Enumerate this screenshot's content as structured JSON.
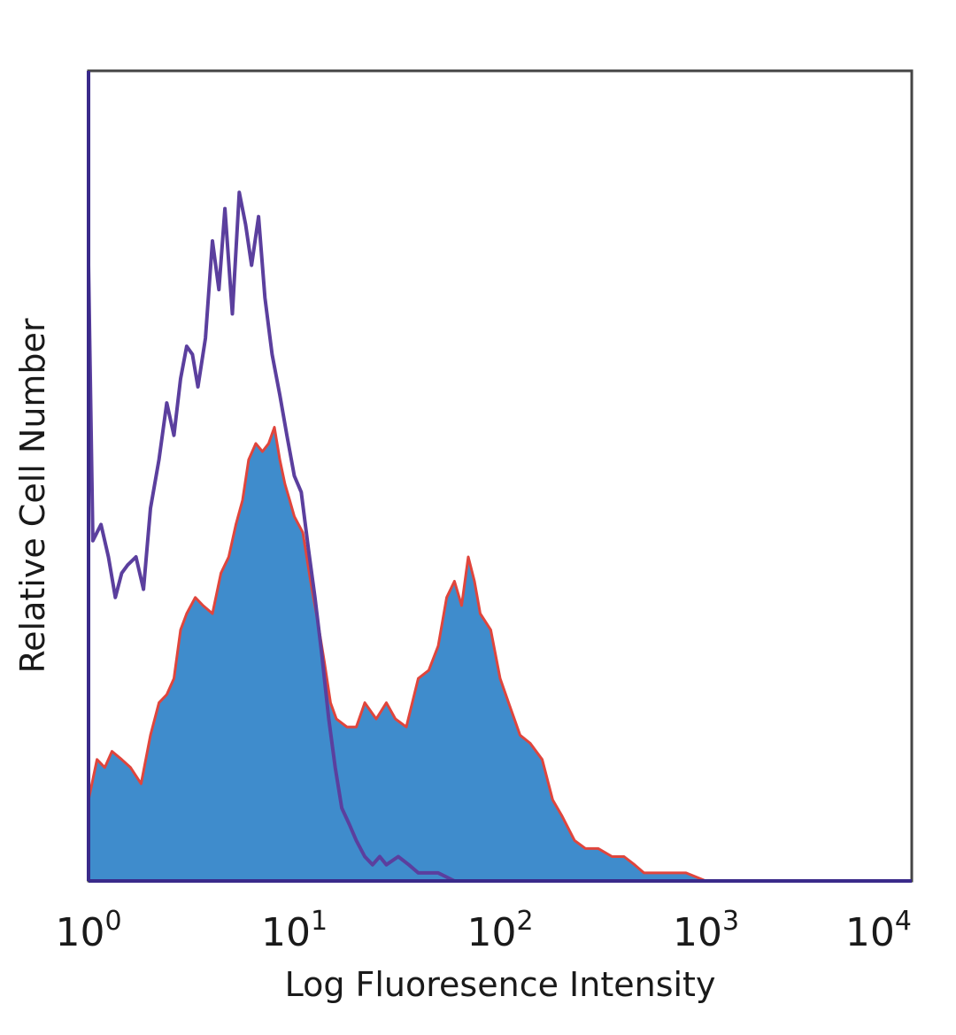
{
  "chart_data": {
    "type": "area",
    "title": "",
    "xlabel": "Log Fluoresence Intensity",
    "ylabel": "Relative Cell Number",
    "x_scale": "log",
    "xlim": [
      1,
      10000
    ],
    "ylim": [
      0,
      100
    ],
    "grid": false,
    "legend": "none",
    "x_ticks": [
      {
        "base": "10",
        "exp": "0",
        "value": 1
      },
      {
        "base": "10",
        "exp": "1",
        "value": 10
      },
      {
        "base": "10",
        "exp": "2",
        "value": 100
      },
      {
        "base": "10",
        "exp": "3",
        "value": 1000
      },
      {
        "base": "10",
        "exp": "4",
        "value": 10000
      }
    ],
    "colors": {
      "filled": "#3f8ccc",
      "filled_outline": "#e0453c",
      "outline": "#5b3f9e",
      "frame": "#444444",
      "axis": "#3a2a8a"
    },
    "series": [
      {
        "style": "outline",
        "color": "#5b3f9e",
        "x": [
          1.0,
          1.05,
          1.15,
          1.25,
          1.35,
          1.45,
          1.55,
          1.7,
          1.85,
          2.0,
          2.2,
          2.4,
          2.6,
          2.8,
          3.0,
          3.2,
          3.4,
          3.7,
          4.0,
          4.3,
          4.6,
          5.0,
          5.4,
          5.8,
          6.2,
          6.7,
          7.2,
          7.8,
          8.5,
          9.2,
          10.0,
          10.8,
          11.7,
          12.6,
          13.6,
          14.7,
          15.8,
          17.0,
          18.5,
          20.0,
          22.0,
          24.0,
          26.0,
          28.0,
          32.0,
          36.0,
          40.0,
          50.0,
          60.0,
          80.0,
          100.0,
          1000.0,
          10000.0
        ],
        "y": [
          76,
          42,
          44,
          40,
          35,
          38,
          39,
          40,
          36,
          46,
          52,
          59,
          55,
          62,
          66,
          65,
          61,
          67,
          79,
          73,
          83,
          70,
          85,
          81,
          76,
          82,
          72,
          65,
          60,
          55,
          50,
          48,
          41,
          35,
          28,
          20,
          14,
          9,
          7,
          5,
          3,
          2,
          3,
          2,
          3,
          2,
          1,
          1,
          0,
          0,
          0,
          0,
          0
        ]
      },
      {
        "style": "filled",
        "color": "#3f8ccc",
        "x": [
          1.0,
          1.1,
          1.2,
          1.3,
          1.45,
          1.6,
          1.8,
          2.0,
          2.2,
          2.4,
          2.6,
          2.8,
          3.0,
          3.3,
          3.6,
          4.0,
          4.4,
          4.8,
          5.2,
          5.6,
          6.0,
          6.5,
          7.0,
          7.5,
          8.0,
          8.5,
          9.0,
          9.5,
          10.0,
          11.0,
          12.0,
          13.0,
          14.0,
          15.0,
          16.0,
          18.0,
          20.0,
          22.0,
          25.0,
          28.0,
          31.0,
          35.0,
          40.0,
          45.0,
          50.0,
          55.0,
          60.0,
          65.0,
          70.0,
          75.0,
          80.0,
          90.0,
          100.0,
          110.0,
          125.0,
          140.0,
          160.0,
          180.0,
          200.0,
          230.0,
          260.0,
          300.0,
          350.0,
          400.0,
          450.0,
          500.0,
          600.0,
          700.0,
          800.0,
          1000.0,
          10000.0
        ],
        "y": [
          10,
          15,
          14,
          16,
          15,
          14,
          12,
          18,
          22,
          23,
          25,
          31,
          33,
          35,
          34,
          33,
          38,
          40,
          44,
          47,
          52,
          54,
          53,
          54,
          56,
          52,
          49,
          47,
          45,
          43,
          37,
          32,
          27,
          22,
          20,
          19,
          19,
          22,
          20,
          22,
          20,
          19,
          25,
          26,
          29,
          35,
          37,
          34,
          40,
          37,
          33,
          31,
          25,
          22,
          18,
          17,
          15,
          10,
          8,
          5,
          4,
          4,
          3,
          3,
          2,
          1,
          1,
          1,
          1,
          0,
          0
        ]
      }
    ]
  }
}
